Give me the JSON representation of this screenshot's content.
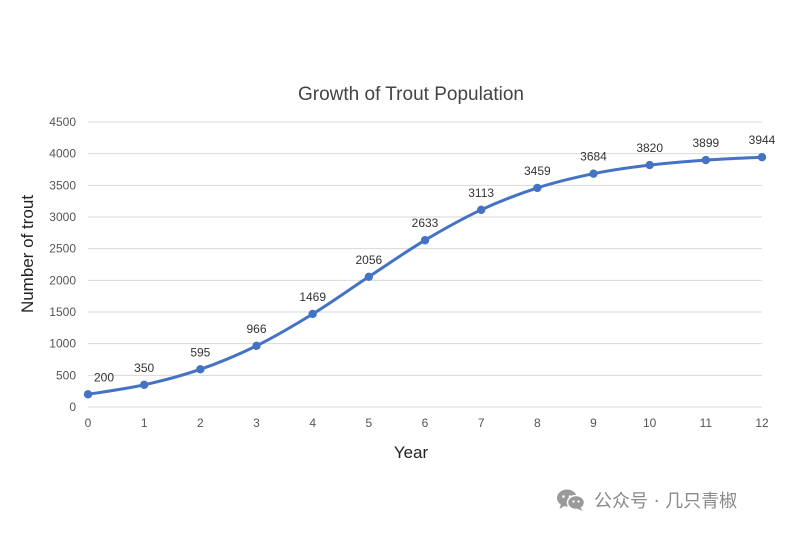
{
  "chart_data": {
    "type": "line",
    "title": "Growth of Trout Population",
    "xlabel": "Year",
    "ylabel": "Number of trout",
    "x": [
      0,
      1,
      2,
      3,
      4,
      5,
      6,
      7,
      8,
      9,
      10,
      11,
      12
    ],
    "x_ticks": [
      "0",
      "1",
      "2",
      "3",
      "4",
      "5",
      "6",
      "7",
      "8",
      "9",
      "10",
      "11",
      "12"
    ],
    "y_ticks": [
      "0",
      "500",
      "1000",
      "1500",
      "2000",
      "2500",
      "3000",
      "3500",
      "4000",
      "4500"
    ],
    "xlim": [
      0,
      12
    ],
    "ylim": [
      0,
      4500
    ],
    "grid": true,
    "smooth": true,
    "series": [
      {
        "values": [
          200,
          350,
          595,
          966,
          1469,
          2056,
          2633,
          3113,
          3459,
          3684,
          3820,
          3899,
          3944
        ],
        "color": "#4472C4"
      }
    ]
  },
  "watermark": {
    "text": "公众号 · 几只青椒",
    "icon": "wechat-icon",
    "color": "#8a8a8a"
  }
}
